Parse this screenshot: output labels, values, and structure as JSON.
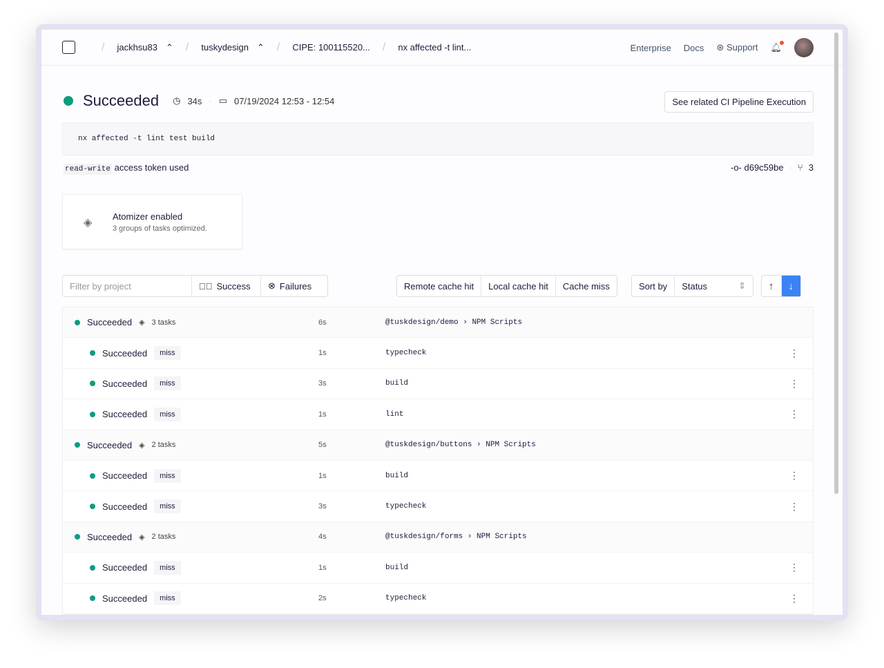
{
  "header": {
    "breadcrumbs": [
      "jackhsu83",
      "tuskydesign",
      "CIPE: 100115520...",
      "nx affected -t lint..."
    ],
    "nav": {
      "enterprise": "Enterprise",
      "docs": "Docs",
      "support": "Support"
    }
  },
  "run": {
    "status": "Succeeded",
    "duration": "34s",
    "time": "07/19/2024 12:53 - 12:54",
    "related_button": "See related CI Pipeline Execution",
    "command": "nx affected -t lint test build",
    "token": "read-write",
    "token_text": "access token used",
    "commit": "d69c59be",
    "branches": "3"
  },
  "atomizer": {
    "title": "Atomizer enabled",
    "subtitle": "3 groups of tasks optimized."
  },
  "filters": {
    "placeholder": "Filter by project",
    "success": "Success",
    "failures": "Failures",
    "remote": "Remote cache hit",
    "local": "Local cache hit",
    "miss": "Cache miss",
    "sort_label": "Sort by",
    "sort_value": "Status"
  },
  "rows": [
    {
      "type": "g",
      "status": "Succeeded",
      "tasks": "3 tasks",
      "dur": "6s",
      "project": "@tuskdesign/demo",
      "target": "NPM Scripts"
    },
    {
      "type": "t",
      "status": "Succeeded",
      "cache": "miss",
      "dur": "1s",
      "target": "typecheck"
    },
    {
      "type": "t",
      "status": "Succeeded",
      "cache": "miss",
      "dur": "3s",
      "target": "build"
    },
    {
      "type": "t",
      "status": "Succeeded",
      "cache": "miss",
      "dur": "1s",
      "target": "lint"
    },
    {
      "type": "g",
      "status": "Succeeded",
      "tasks": "2 tasks",
      "dur": "5s",
      "project": "@tuskdesign/buttons",
      "target": "NPM Scripts"
    },
    {
      "type": "t",
      "status": "Succeeded",
      "cache": "miss",
      "dur": "1s",
      "target": "build"
    },
    {
      "type": "t",
      "status": "Succeeded",
      "cache": "miss",
      "dur": "3s",
      "target": "typecheck"
    },
    {
      "type": "g",
      "status": "Succeeded",
      "tasks": "2 tasks",
      "dur": "4s",
      "project": "@tuskdesign/forms",
      "target": "NPM Scripts"
    },
    {
      "type": "t",
      "status": "Succeeded",
      "cache": "miss",
      "dur": "1s",
      "target": "build"
    },
    {
      "type": "t",
      "status": "Succeeded",
      "cache": "miss",
      "dur": "2s",
      "target": "typecheck"
    }
  ]
}
